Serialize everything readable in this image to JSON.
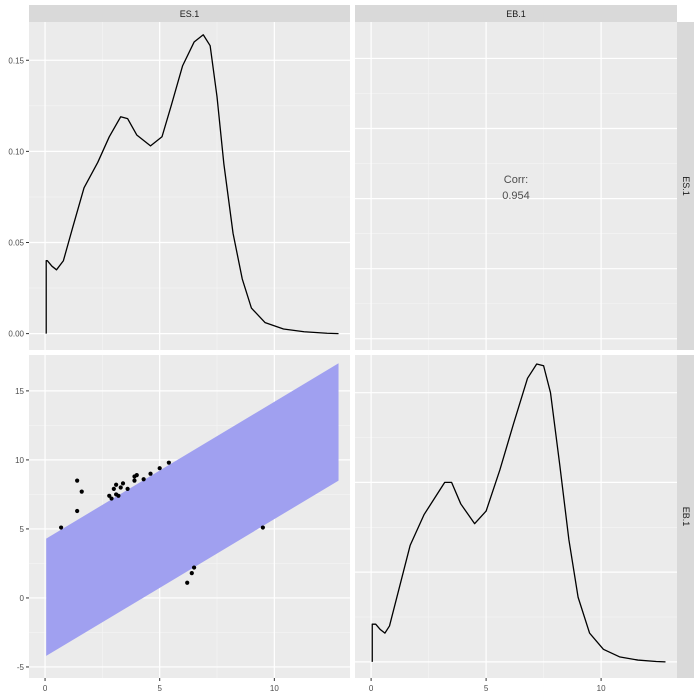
{
  "chart_data": {
    "type": "scatter",
    "variables": [
      "ES.1",
      "EB.1"
    ],
    "strip_labels": {
      "top_left": "ES.1",
      "top_right": "EB.1",
      "right_top": "ES.1",
      "right_bottom": "EB.1"
    },
    "grid": true,
    "panels": {
      "density_es1": {
        "type": "line",
        "xlim": [
          -0.7,
          13.3
        ],
        "ylim": [
          -0.009,
          0.171
        ],
        "y_ticks": [
          0.0,
          0.05,
          0.1,
          0.15
        ],
        "y_tick_labels": [
          "0.00",
          "0.05",
          "0.10",
          "0.15"
        ],
        "x": [
          0.05,
          0.05,
          0.1,
          0.3,
          0.5,
          0.8,
          1.2,
          1.7,
          2.3,
          2.8,
          3.3,
          3.6,
          4.0,
          4.6,
          5.1,
          5.5,
          6.0,
          6.5,
          6.9,
          7.2,
          7.5,
          7.8,
          8.2,
          8.6,
          9.0,
          9.6,
          10.4,
          11.3,
          12.3,
          12.8
        ],
        "y": [
          0.0,
          0.04,
          0.04,
          0.037,
          0.035,
          0.04,
          0.058,
          0.08,
          0.094,
          0.108,
          0.119,
          0.118,
          0.109,
          0.103,
          0.108,
          0.125,
          0.147,
          0.16,
          0.164,
          0.158,
          0.13,
          0.093,
          0.055,
          0.03,
          0.014,
          0.006,
          0.0025,
          0.001,
          0.0002,
          0.0
        ]
      },
      "correlation": {
        "label": "Corr:",
        "value": "0.954"
      },
      "scatter": {
        "xlim": [
          -0.7,
          13.3
        ],
        "ylim": [
          -5.8,
          17.6
        ],
        "x_ticks": [
          0,
          5,
          10
        ],
        "x_tick_labels": [
          "0",
          "5",
          "10"
        ],
        "y_ticks": [
          -5,
          0,
          5,
          10,
          15
        ],
        "y_tick_labels": [
          "-5",
          "0",
          "5",
          "10",
          "15"
        ],
        "band": {
          "color": "#a0a0f0",
          "x": [
            0.05,
            12.8
          ],
          "upper": [
            4.3,
            17.0
          ],
          "lower": [
            -4.2,
            8.5
          ]
        },
        "points": [
          {
            "x": 0.7,
            "y": 5.1
          },
          {
            "x": 1.4,
            "y": 8.5
          },
          {
            "x": 1.4,
            "y": 6.3
          },
          {
            "x": 1.6,
            "y": 7.7
          },
          {
            "x": 2.8,
            "y": 7.4
          },
          {
            "x": 2.9,
            "y": 7.2
          },
          {
            "x": 3.0,
            "y": 7.9
          },
          {
            "x": 3.1,
            "y": 7.5
          },
          {
            "x": 3.1,
            "y": 8.2
          },
          {
            "x": 3.2,
            "y": 7.4
          },
          {
            "x": 3.3,
            "y": 8.0
          },
          {
            "x": 3.4,
            "y": 8.3
          },
          {
            "x": 3.6,
            "y": 7.9
          },
          {
            "x": 3.9,
            "y": 8.8
          },
          {
            "x": 3.9,
            "y": 8.5
          },
          {
            "x": 4.0,
            "y": 8.9
          },
          {
            "x": 4.3,
            "y": 8.6
          },
          {
            "x": 4.6,
            "y": 9.0
          },
          {
            "x": 5.0,
            "y": 9.4
          },
          {
            "x": 5.4,
            "y": 9.8
          },
          {
            "x": 6.2,
            "y": 1.1
          },
          {
            "x": 6.4,
            "y": 1.8
          },
          {
            "x": 6.5,
            "y": 2.2
          },
          {
            "x": 9.5,
            "y": 5.1
          }
        ]
      },
      "density_eb1": {
        "type": "line",
        "xlim": [
          -0.7,
          13.3
        ],
        "ylim": [
          -0.009,
          0.171
        ],
        "x_ticks": [
          0,
          5,
          10
        ],
        "x_tick_labels": [
          "0",
          "5",
          "10"
        ],
        "x": [
          0.05,
          0.05,
          0.2,
          0.4,
          0.6,
          0.8,
          1.2,
          1.7,
          2.3,
          2.8,
          3.2,
          3.5,
          3.9,
          4.5,
          5.0,
          5.6,
          6.2,
          6.8,
          7.2,
          7.5,
          7.8,
          8.2,
          8.6,
          9.0,
          9.5,
          10.1,
          10.8,
          11.6,
          12.4,
          12.8
        ],
        "y": [
          0.0,
          0.021,
          0.021,
          0.018,
          0.016,
          0.02,
          0.04,
          0.065,
          0.082,
          0.092,
          0.1,
          0.1,
          0.088,
          0.077,
          0.084,
          0.107,
          0.133,
          0.158,
          0.166,
          0.165,
          0.15,
          0.11,
          0.068,
          0.036,
          0.016,
          0.007,
          0.0028,
          0.001,
          0.0002,
          0.0
        ]
      }
    }
  }
}
